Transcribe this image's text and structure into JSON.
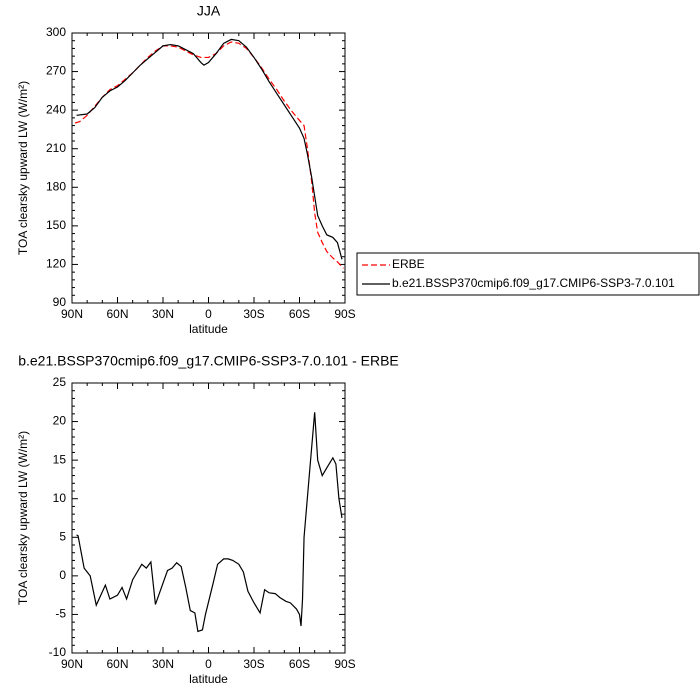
{
  "chart_data": [
    {
      "type": "line",
      "title": "JJA",
      "xlabel": "latitude",
      "ylabel": "TOA clearsky upward LW (W/m²)",
      "xlim": [
        90,
        -90
      ],
      "xticks": [
        {
          "value": 90,
          "label": "90N"
        },
        {
          "value": 60,
          "label": "60N"
        },
        {
          "value": 30,
          "label": "30N"
        },
        0,
        {
          "value": -30,
          "label": "30S"
        },
        {
          "value": -60,
          "label": "60S"
        },
        {
          "value": -90,
          "label": "90S"
        }
      ],
      "ylim": [
        90,
        300
      ],
      "yticks": [
        90,
        120,
        150,
        180,
        210,
        240,
        270,
        300
      ],
      "legend": "right",
      "series": [
        {
          "name": "ERBE",
          "color": "#ff0000",
          "style": "dashed",
          "x": [
            88,
            85,
            80,
            75,
            70,
            65,
            60,
            55,
            50,
            45,
            40,
            35,
            30,
            25,
            20,
            15,
            10,
            5,
            0,
            -5,
            -10,
            -15,
            -20,
            -25,
            -30,
            -35,
            -40,
            -45,
            -50,
            -55,
            -60,
            -63,
            -65,
            -68,
            -70,
            -72,
            -75,
            -78,
            -82,
            -85,
            -89
          ],
          "values": [
            230,
            231,
            236,
            243,
            250,
            256,
            259,
            264,
            269,
            275,
            281,
            286,
            290,
            290,
            289,
            286,
            283,
            281,
            281,
            284,
            290,
            293,
            292,
            288,
            281,
            273,
            264,
            256,
            247,
            239,
            232,
            228,
            212,
            185,
            160,
            145,
            137,
            130,
            125,
            122,
            117
          ]
        },
        {
          "name": "b.e21.BSSP370cmip6.f09_g17.CMIP6-SSP3-7.0.101",
          "color": "#000000",
          "style": "solid",
          "x": [
            87,
            80,
            75,
            70,
            65,
            60,
            55,
            50,
            45,
            40,
            35,
            30,
            25,
            20,
            15,
            10,
            5,
            3,
            0,
            -5,
            -10,
            -15,
            -20,
            -25,
            -30,
            -35,
            -40,
            -45,
            -50,
            -55,
            -60,
            -63,
            -65,
            -68,
            -70,
            -72,
            -75,
            -78,
            -82,
            -85,
            -88
          ],
          "values": [
            236,
            237,
            242,
            250,
            255,
            258,
            263,
            269,
            275,
            280,
            285,
            290,
            291,
            290,
            287,
            284,
            277,
            275,
            277,
            284,
            292,
            295,
            294,
            289,
            281,
            272,
            262,
            253,
            244,
            235,
            226,
            218,
            207,
            188,
            173,
            158,
            150,
            143,
            141,
            137,
            124
          ]
        }
      ]
    },
    {
      "type": "line",
      "title": "b.e21.BSSP370cmip6.f09_g17.CMIP6-SSP3-7.0.101 - ERBE",
      "xlabel": "latitude",
      "ylabel": "TOA clearsky upward LW (W/m²)",
      "xlim": [
        90,
        -90
      ],
      "xticks": [
        {
          "value": 90,
          "label": "90N"
        },
        {
          "value": 60,
          "label": "60N"
        },
        {
          "value": 30,
          "label": "30N"
        },
        0,
        {
          "value": -30,
          "label": "30S"
        },
        {
          "value": -60,
          "label": "60S"
        },
        {
          "value": -90,
          "label": "90S"
        }
      ],
      "ylim": [
        -10,
        25
      ],
      "yticks": [
        -10,
        -5,
        0,
        5,
        10,
        15,
        20,
        25
      ],
      "series": [
        {
          "color": "#000000",
          "style": "solid",
          "x": [
            87,
            86,
            82,
            78,
            74,
            68,
            65,
            60,
            57,
            54,
            50,
            47,
            44,
            41,
            38,
            35,
            31,
            27,
            24,
            21,
            18,
            15,
            12,
            9,
            7,
            4,
            2,
            -3,
            -6,
            -10,
            -13,
            -16,
            -20,
            -23,
            -26,
            -30,
            -34,
            -37,
            -40,
            -44,
            -47,
            -51,
            -54,
            -58,
            -60,
            -61,
            -62,
            -63,
            -66,
            -70,
            -72,
            -75,
            -78,
            -82,
            -84,
            -86,
            -88
          ],
          "values": [
            5.3,
            5.2,
            1,
            0,
            -3.8,
            -1.2,
            -3,
            -2.5,
            -1.5,
            -3,
            -0.5,
            0.5,
            1.5,
            1,
            1.8,
            -3.7,
            -1.5,
            0.7,
            1,
            1.7,
            1.2,
            -1.5,
            -4.5,
            -4.8,
            -7.2,
            -7,
            -5,
            -1,
            1.5,
            2.2,
            2.2,
            2,
            1.5,
            0.5,
            -2,
            -3.5,
            -4.8,
            -1.8,
            -2.2,
            -2.3,
            -2.8,
            -3.3,
            -3.5,
            -4.3,
            -5,
            -6.5,
            -3,
            5,
            12,
            21.2,
            15,
            13,
            14,
            15.3,
            14.5,
            10,
            7.5
          ]
        }
      ]
    }
  ]
}
